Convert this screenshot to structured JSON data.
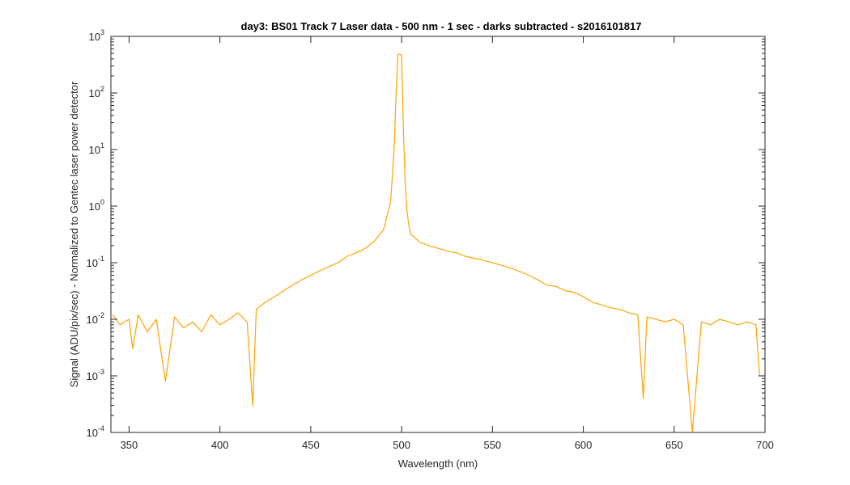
{
  "chart_data": {
    "type": "line",
    "title": "day3: BS01  Track 7 Laser data - 500 nm - 1 sec - darks subtracted - s2016101817",
    "xlabel": "Wavelength (nm)",
    "ylabel": "Signal (ADU/pix/sec) - Normalized to Gentec laser power detector",
    "xlim": [
      340,
      700
    ],
    "ylim": [
      0.0001,
      1000
    ],
    "yscale": "log",
    "grid": false,
    "line_color": "#FFA500",
    "x_ticks": [
      350,
      400,
      450,
      500,
      550,
      600,
      650,
      700
    ],
    "y_tick_labels": [
      {
        "base": "10",
        "exp": "-4"
      },
      {
        "base": "10",
        "exp": "-3"
      },
      {
        "base": "10",
        "exp": "-2"
      },
      {
        "base": "10",
        "exp": "-1"
      },
      {
        "base": "10",
        "exp": "0"
      },
      {
        "base": "10",
        "exp": "1"
      },
      {
        "base": "10",
        "exp": "2"
      },
      {
        "base": "10",
        "exp": "3"
      }
    ],
    "series": [
      {
        "x": [
          341,
          345,
          350,
          352,
          355,
          360,
          365,
          370,
          375,
          380,
          385,
          390,
          395,
          400,
          405,
          410,
          415,
          418,
          420,
          425,
          430,
          435,
          440,
          445,
          450,
          455,
          460,
          465,
          470,
          475,
          480,
          485,
          490,
          494,
          496,
          497,
          498,
          499,
          500,
          501,
          502,
          503,
          504,
          505,
          510,
          515,
          520,
          525,
          530,
          535,
          540,
          545,
          550,
          555,
          560,
          565,
          570,
          575,
          580,
          585,
          590,
          595,
          600,
          605,
          610,
          615,
          620,
          625,
          630,
          633,
          635,
          640,
          645,
          650,
          655,
          660,
          665,
          670,
          675,
          680,
          685,
          690,
          695,
          697
        ],
        "y": [
          0.012,
          0.008,
          0.01,
          0.003,
          0.012,
          0.006,
          0.01,
          0.0008,
          0.011,
          0.007,
          0.009,
          0.006,
          0.012,
          0.008,
          0.01,
          0.013,
          0.009,
          0.0003,
          0.015,
          0.02,
          0.025,
          0.032,
          0.04,
          0.05,
          0.06,
          0.072,
          0.085,
          0.1,
          0.13,
          0.15,
          0.18,
          0.24,
          0.38,
          1.2,
          12,
          110,
          480,
          480,
          470,
          20,
          2.5,
          0.8,
          0.45,
          0.32,
          0.23,
          0.2,
          0.18,
          0.16,
          0.15,
          0.13,
          0.12,
          0.11,
          0.1,
          0.09,
          0.08,
          0.07,
          0.06,
          0.05,
          0.04,
          0.038,
          0.032,
          0.03,
          0.025,
          0.02,
          0.018,
          0.016,
          0.015,
          0.013,
          0.012,
          0.0004,
          0.011,
          0.01,
          0.009,
          0.01,
          0.008,
          0.0001,
          0.009,
          0.008,
          0.01,
          0.009,
          0.008,
          0.009,
          0.008,
          0.001
        ]
      }
    ]
  }
}
